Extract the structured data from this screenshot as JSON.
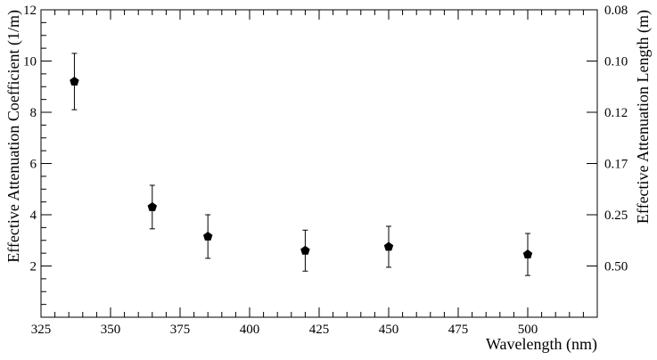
{
  "chart_data": {
    "type": "scatter",
    "xlabel": "Wavelength (nm)",
    "ylabel": "Effective Attenuation Coefficient (1/m)",
    "y2label": "Effective Attenuation Length (m)",
    "xlim": [
      325,
      525
    ],
    "ylim": [
      0,
      12
    ],
    "xticks": [
      325,
      350,
      375,
      400,
      425,
      450,
      475,
      500
    ],
    "xtick_labels": [
      "325",
      "350",
      "375",
      "400",
      "425",
      "450",
      "475",
      "500"
    ],
    "yticks": [
      2,
      4,
      6,
      8,
      10,
      12
    ],
    "ytick_labels": [
      "2",
      "4",
      "6",
      "8",
      "10",
      "12"
    ],
    "y2ticks": [
      {
        "label": "0.08",
        "coef": 12
      },
      {
        "label": "0.10",
        "coef": 10
      },
      {
        "label": "0.12",
        "coef": 8
      },
      {
        "label": "0.17",
        "coef": 6
      },
      {
        "label": "0.25",
        "coef": 4
      },
      {
        "label": "0.50",
        "coef": 2
      }
    ],
    "grid": false,
    "marker": "pentagon",
    "points": [
      {
        "x": 337,
        "y": 9.2,
        "err": 1.1
      },
      {
        "x": 365,
        "y": 4.3,
        "err": 0.85
      },
      {
        "x": 385,
        "y": 3.15,
        "err": 0.85
      },
      {
        "x": 420,
        "y": 2.6,
        "err": 0.8
      },
      {
        "x": 450,
        "y": 2.75,
        "err": 0.8
      },
      {
        "x": 500,
        "y": 2.45,
        "err": 0.82
      }
    ],
    "colors": {
      "marker": "#000000",
      "axis": "#000000"
    }
  }
}
